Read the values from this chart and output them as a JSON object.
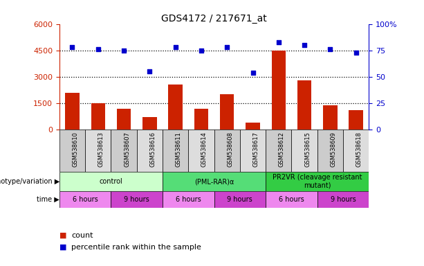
{
  "title": "GDS4172 / 217671_at",
  "samples": [
    "GSM538610",
    "GSM538613",
    "GSM538607",
    "GSM538616",
    "GSM538611",
    "GSM538614",
    "GSM538608",
    "GSM538617",
    "GSM538612",
    "GSM538615",
    "GSM538609",
    "GSM538618"
  ],
  "counts": [
    2100,
    1500,
    1200,
    700,
    2550,
    1200,
    2000,
    400,
    4500,
    2800,
    1400,
    1100
  ],
  "percentile": [
    78,
    76,
    75,
    55,
    78,
    75,
    78,
    54,
    83,
    80,
    76,
    73
  ],
  "count_scale": 6000,
  "percentile_scale": 100,
  "yticks_left": [
    0,
    1500,
    3000,
    4500,
    6000
  ],
  "ytick_labels_left": [
    "0",
    "1500",
    "3000",
    "4500",
    "6000"
  ],
  "yticks_right": [
    0,
    25,
    50,
    75,
    100
  ],
  "ytick_labels_right": [
    "0",
    "25",
    "50",
    "75",
    "100%"
  ],
  "genotype_groups": [
    {
      "label": "control",
      "start": 0,
      "end": 4,
      "color": "#ccffcc"
    },
    {
      "label": "(PML-RAR)α",
      "start": 4,
      "end": 8,
      "color": "#55dd77"
    },
    {
      "label": "PR2VR (cleavage resistant\nmutant)",
      "start": 8,
      "end": 12,
      "color": "#33cc44"
    }
  ],
  "time_groups": [
    {
      "label": "6 hours",
      "start": 0,
      "end": 2,
      "color": "#ee88ee"
    },
    {
      "label": "9 hours",
      "start": 2,
      "end": 4,
      "color": "#cc44cc"
    },
    {
      "label": "6 hours",
      "start": 4,
      "end": 6,
      "color": "#ee88ee"
    },
    {
      "label": "9 hours",
      "start": 6,
      "end": 8,
      "color": "#cc44cc"
    },
    {
      "label": "6 hours",
      "start": 8,
      "end": 10,
      "color": "#ee88ee"
    },
    {
      "label": "9 hours",
      "start": 10,
      "end": 12,
      "color": "#cc44cc"
    }
  ],
  "bar_color": "#cc2200",
  "dot_color": "#0000cc",
  "bar_width": 0.55,
  "genotype_label": "genotype/variation",
  "time_label": "time",
  "legend_count": "count",
  "legend_percentile": "percentile rank within the sample",
  "background_color": "#ffffff",
  "tick_label_color_left": "#cc2200",
  "tick_label_color_right": "#0000cc",
  "xtick_bg_even": "#cccccc",
  "xtick_bg_odd": "#dddddd"
}
